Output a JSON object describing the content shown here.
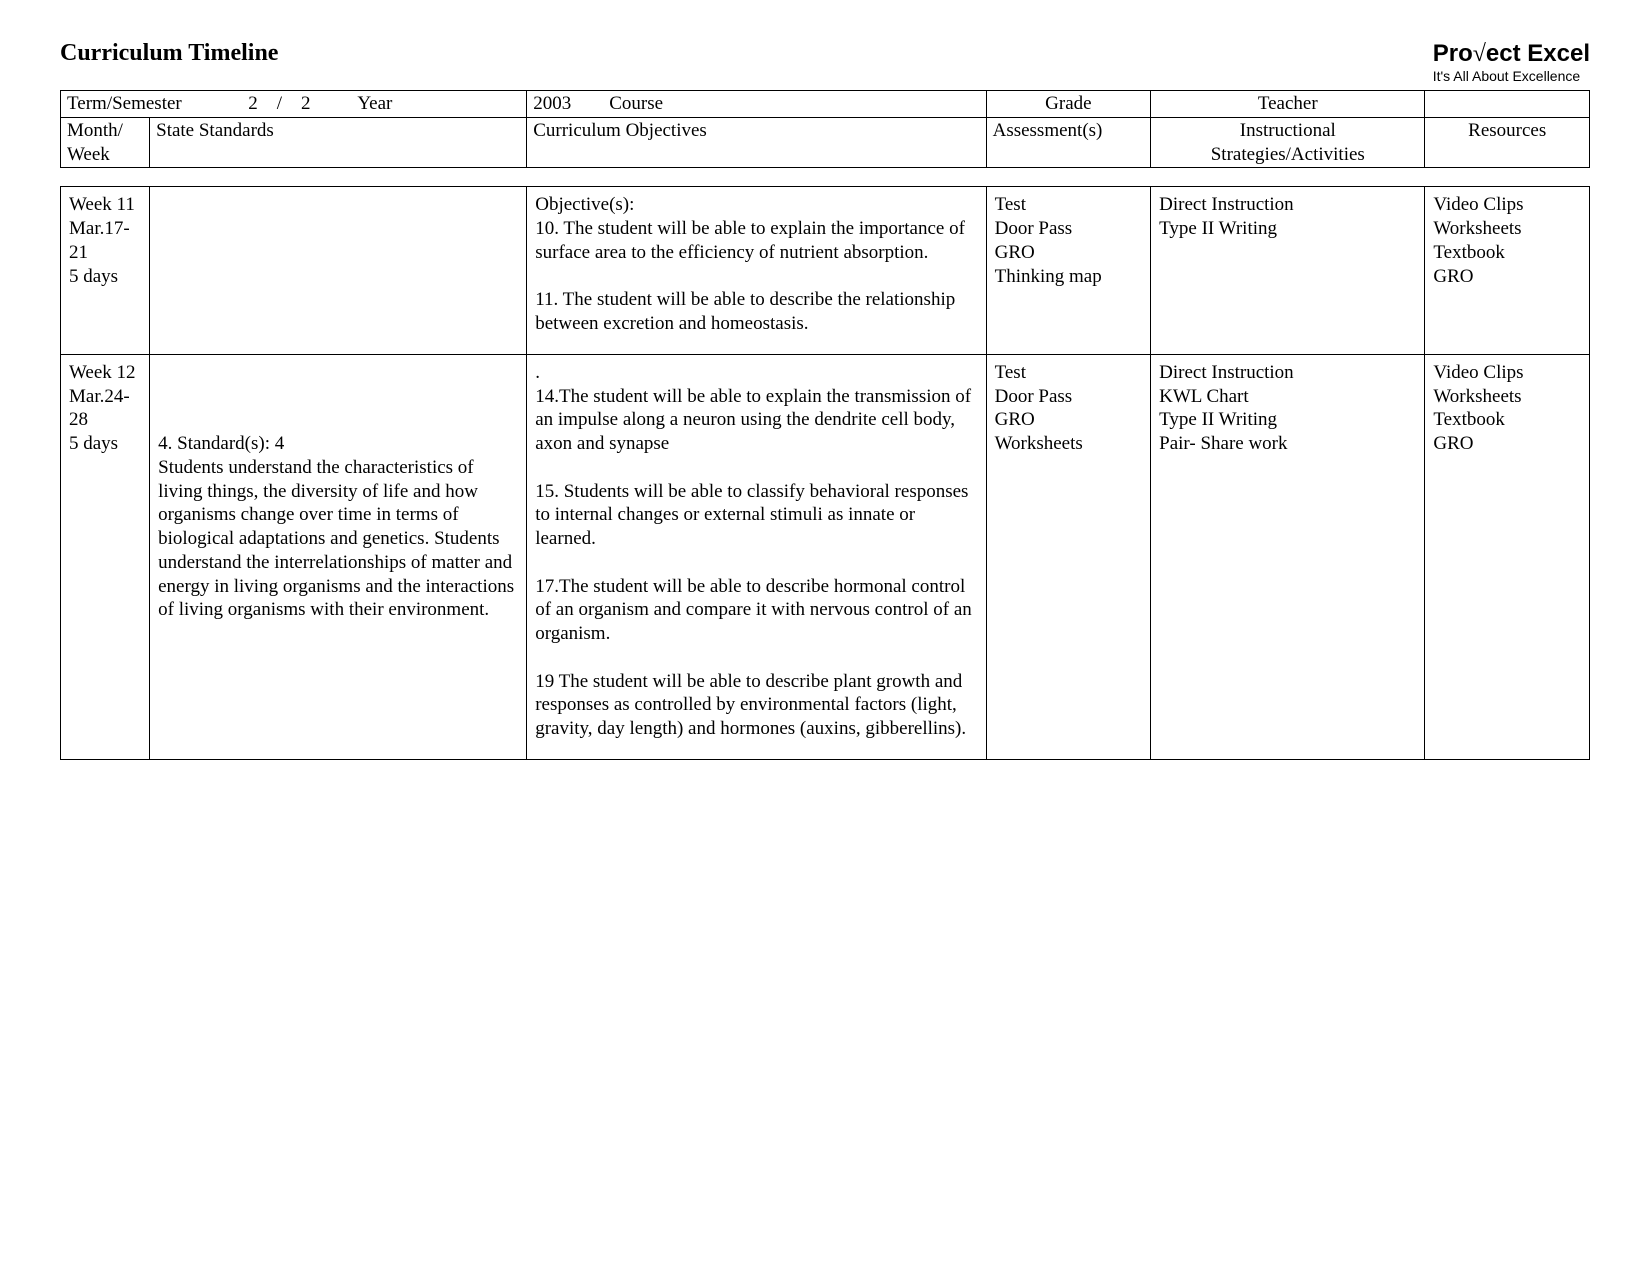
{
  "page_title": "Curriculum Timeline",
  "brand": {
    "name_pre": "Pro",
    "name_post": "ect Excel",
    "tagline": "It's All About Excellence"
  },
  "top": {
    "term_label": "Term/Semester",
    "term_value": "2    /    2",
    "year_label": "Year",
    "year_value": "2003",
    "course_label": "Course",
    "grade_label": "Grade",
    "teacher_label": "Teacher"
  },
  "headers": {
    "week": "Month/\nWeek",
    "standards": "State Standards",
    "objectives": "Curriculum Objectives",
    "assessments": "Assessment(s)",
    "strategies": "Instructional\nStrategies/Activities",
    "resources": "Resources"
  },
  "rows": [
    {
      "week": "Week 11\nMar.17-21\n5 days",
      "standards": "",
      "objectives": "Objective(s):\n10. The student will be able to explain the importance of surface area to the efficiency of nutrient absorption.\n\n11. The student will be able to describe the relationship between excretion and homeostasis.\n",
      "assessments": "Test\nDoor Pass\nGRO\nThinking map",
      "strategies": "Direct Instruction\nType II Writing",
      "resources": "Video Clips\nWorksheets\nTextbook\nGRO"
    },
    {
      "week": "Week 12\nMar.24-28\n5 days",
      "standards": "\n\n\n4. Standard(s): 4\nStudents understand the characteristics of living things, the diversity of life and how organisms change over time in terms of biological adaptations and genetics. Students understand the interrelationships of matter and energy in living organisms and the interactions of living organisms with their environment.",
      "objectives": ".\n14.The student will be able to explain the transmission of an impulse along a neuron using the dendrite cell body, axon and synapse\n\n15. Students will be able to classify behavioral responses to internal changes or external stimuli as innate or learned.\n\n17.The student will be able to describe hormonal control of an organism and compare it with nervous control of an organism.\n\n19 The student will be able to describe plant growth and responses as controlled by environmental factors (light, gravity, day length) and hormones (auxins, gibberellins).\n",
      "assessments": "Test\nDoor Pass\nGRO\nWorksheets",
      "strategies": "Direct Instruction\nKWL Chart\nType II Writing\nPair- Share work",
      "resources": "Video Clips\nWorksheets\nTextbook\nGRO"
    }
  ]
}
